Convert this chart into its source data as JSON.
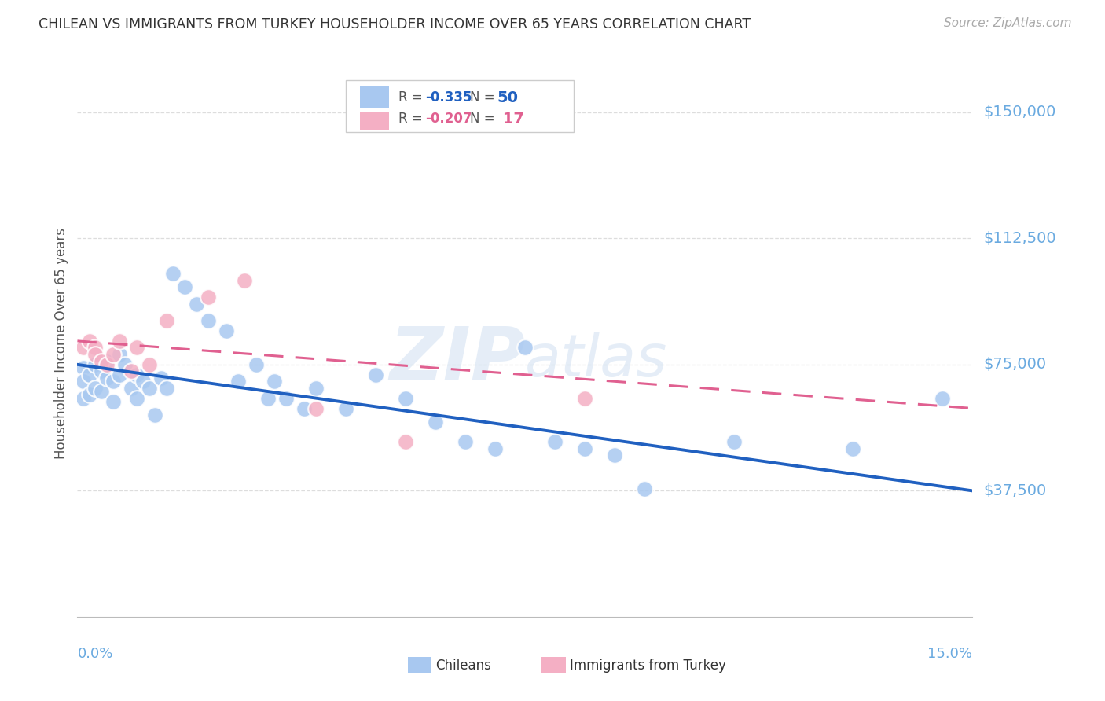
{
  "title": "CHILEAN VS IMMIGRANTS FROM TURKEY HOUSEHOLDER INCOME OVER 65 YEARS CORRELATION CHART",
  "source": "Source: ZipAtlas.com",
  "ylabel": "Householder Income Over 65 years",
  "xlim": [
    0.0,
    0.15
  ],
  "ylim": [
    0,
    162500
  ],
  "yticks": [
    37500,
    75000,
    112500,
    150000
  ],
  "ytick_labels": [
    "$37,500",
    "$75,000",
    "$112,500",
    "$150,000"
  ],
  "chilean_color": "#a8c8f0",
  "turkey_color": "#f4afc4",
  "chilean_line_color": "#2060c0",
  "turkey_line_color": "#e06090",
  "watermark_text": "ZIPatlas",
  "bg_color": "#ffffff",
  "grid_color": "#dddddd",
  "axis_label_color": "#6aaae0",
  "chilean_x": [
    0.001,
    0.001,
    0.001,
    0.002,
    0.002,
    0.003,
    0.003,
    0.004,
    0.004,
    0.005,
    0.005,
    0.006,
    0.006,
    0.007,
    0.007,
    0.008,
    0.009,
    0.01,
    0.01,
    0.011,
    0.012,
    0.013,
    0.014,
    0.015,
    0.016,
    0.018,
    0.02,
    0.022,
    0.025,
    0.027,
    0.03,
    0.032,
    0.033,
    0.035,
    0.038,
    0.04,
    0.045,
    0.05,
    0.055,
    0.06,
    0.065,
    0.07,
    0.075,
    0.08,
    0.085,
    0.09,
    0.095,
    0.11,
    0.13,
    0.145
  ],
  "chilean_y": [
    74000,
    70000,
    65000,
    72000,
    66000,
    75000,
    68000,
    73000,
    67000,
    76000,
    71000,
    70000,
    64000,
    78000,
    72000,
    75000,
    68000,
    72000,
    65000,
    70000,
    68000,
    60000,
    71000,
    68000,
    102000,
    98000,
    93000,
    88000,
    85000,
    70000,
    75000,
    65000,
    70000,
    65000,
    62000,
    68000,
    62000,
    72000,
    65000,
    58000,
    52000,
    50000,
    80000,
    52000,
    50000,
    48000,
    38000,
    52000,
    50000,
    65000
  ],
  "turkey_x": [
    0.001,
    0.002,
    0.003,
    0.003,
    0.004,
    0.005,
    0.006,
    0.007,
    0.009,
    0.01,
    0.012,
    0.015,
    0.022,
    0.028,
    0.04,
    0.055,
    0.085
  ],
  "turkey_y": [
    80000,
    82000,
    80000,
    78000,
    76000,
    75000,
    78000,
    82000,
    73000,
    80000,
    75000,
    88000,
    95000,
    100000,
    62000,
    52000,
    65000
  ]
}
